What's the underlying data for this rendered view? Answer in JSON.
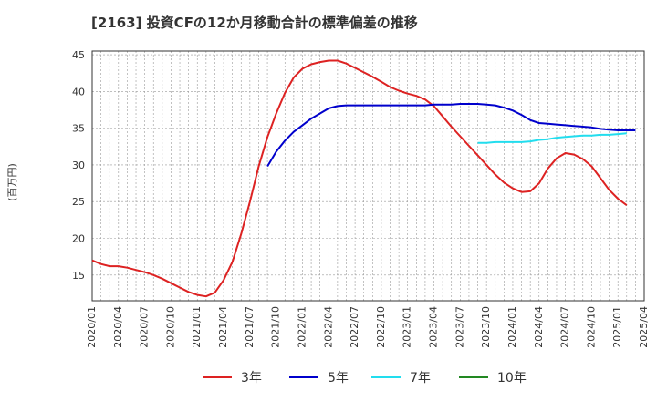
{
  "chart_data": {
    "type": "line",
    "title": "[2163]  投資CFの12か月移動合計の標準偏差の推移",
    "ylabel": "(百万円)",
    "xlabel": "",
    "ylim": [
      11.5,
      45.5
    ],
    "yticks": [
      15,
      20,
      25,
      30,
      35,
      40,
      45
    ],
    "xlim": [
      "2020-01",
      "2025-04"
    ],
    "xticks": [
      "2020/01",
      "2020/04",
      "2020/07",
      "2020/10",
      "2021/01",
      "2021/04",
      "2021/07",
      "2021/10",
      "2022/01",
      "2022/04",
      "2022/07",
      "2022/10",
      "2023/01",
      "2023/04",
      "2023/07",
      "2023/10",
      "2024/01",
      "2024/04",
      "2024/07",
      "2024/10",
      "2025/01",
      "2025/04"
    ],
    "grid": true,
    "legend_position": "bottom",
    "series": [
      {
        "name": "3年",
        "color": "#dd2222",
        "start": "2020-01",
        "values": [
          17.0,
          16.5,
          16.2,
          16.2,
          16.0,
          15.7,
          15.4,
          15.0,
          14.5,
          13.9,
          13.3,
          12.7,
          12.3,
          12.1,
          12.6,
          14.3,
          16.8,
          20.6,
          25.0,
          29.8,
          33.8,
          37.0,
          39.8,
          41.9,
          43.1,
          43.7,
          44.0,
          44.2,
          44.2,
          43.8,
          43.2,
          42.6,
          42.0,
          41.3,
          40.6,
          40.1,
          39.7,
          39.4,
          38.9,
          38.0,
          36.6,
          35.2,
          33.9,
          32.6,
          31.3,
          30.0,
          28.7,
          27.6,
          26.8,
          26.3,
          26.4,
          27.5,
          29.5,
          30.9,
          31.6,
          31.4,
          30.8,
          29.8,
          28.2,
          26.6,
          25.4,
          24.5
        ]
      },
      {
        "name": "5年",
        "color": "#0000cc",
        "start": "2021-09",
        "values": [
          29.8,
          31.8,
          33.3,
          34.5,
          35.4,
          36.3,
          37.0,
          37.7,
          38.0,
          38.1,
          38.1,
          38.1,
          38.1,
          38.1,
          38.1,
          38.1,
          38.1,
          38.1,
          38.1,
          38.2,
          38.2,
          38.2,
          38.3,
          38.3,
          38.3,
          38.2,
          38.1,
          37.8,
          37.4,
          36.8,
          36.1,
          35.7,
          35.6,
          35.5,
          35.4,
          35.3,
          35.2,
          35.1,
          34.9,
          34.8,
          34.7,
          34.7,
          34.7
        ]
      },
      {
        "name": "7年",
        "color": "#22ddee",
        "start": "2023-09",
        "values": [
          33.0,
          33.0,
          33.1,
          33.1,
          33.1,
          33.1,
          33.2,
          33.4,
          33.5,
          33.7,
          33.8,
          33.9,
          34.0,
          34.0,
          34.1,
          34.1,
          34.2,
          34.3
        ]
      },
      {
        "name": "10年",
        "color": "#228822",
        "start": "2025-02",
        "values": []
      }
    ]
  }
}
